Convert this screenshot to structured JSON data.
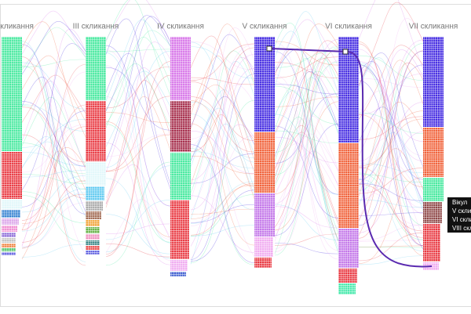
{
  "columns": [
    {
      "label": "II скликання",
      "segments": [
        {
          "color": "#3ee89a",
          "size": 146
        },
        {
          "color": "#e8313a",
          "size": 60
        },
        {
          "color": "#e0f7fa",
          "size": 12
        },
        {
          "color": "#2f7fd0",
          "size": 10
        },
        {
          "color": "#d9a0e8",
          "size": 8
        },
        {
          "color": "#f08ad0",
          "size": 8
        },
        {
          "color": "#8a6ad8",
          "size": 6
        },
        {
          "color": "#c0c0c0",
          "size": 6
        },
        {
          "color": "#f07f3a",
          "size": 5
        },
        {
          "color": "#48c060",
          "size": 4
        },
        {
          "color": "#6060e0",
          "size": 4
        }
      ]
    },
    {
      "label": "III скликання",
      "segments": [
        {
          "color": "#3ee89a",
          "size": 81
        },
        {
          "color": "#e8313a",
          "size": 77
        },
        {
          "color": "#e0f7fa",
          "size": 30
        },
        {
          "color": "#5bc8f0",
          "size": 18
        },
        {
          "color": "#a8a8a8",
          "size": 12
        },
        {
          "color": "#a06850",
          "size": 10
        },
        {
          "color": "#f0a030",
          "size": 8
        },
        {
          "color": "#60b040",
          "size": 8
        },
        {
          "color": "#f090c0",
          "size": 7
        },
        {
          "color": "#2f8080",
          "size": 6
        },
        {
          "color": "#e84040",
          "size": 5
        },
        {
          "color": "#6060e0",
          "size": 5
        }
      ]
    },
    {
      "label": "IV скликання",
      "segments": [
        {
          "color": "#d670e8",
          "size": 81
        },
        {
          "color": "#a02040",
          "size": 65
        },
        {
          "color": "#3ee89a",
          "size": 60
        },
        {
          "color": "#e8313a",
          "size": 75
        },
        {
          "color": "#f0a8f0",
          "size": 14
        },
        {
          "color": "#4060d0",
          "size": 6
        }
      ]
    },
    {
      "label": "V скликання",
      "segments": [
        {
          "color": "#3a20e0",
          "size": 121
        },
        {
          "color": "#f05a30",
          "size": 77
        },
        {
          "color": "#c070e8",
          "size": 55
        },
        {
          "color": "#f0a8f0",
          "size": 25
        },
        {
          "color": "#e8313a",
          "size": 13
        }
      ]
    },
    {
      "label": "VI скликання",
      "segments": [
        {
          "color": "#3a20e0",
          "size": 135
        },
        {
          "color": "#f05a30",
          "size": 108
        },
        {
          "color": "#c070e8",
          "size": 50
        },
        {
          "color": "#e8313a",
          "size": 18
        },
        {
          "color": "#3ee8a8",
          "size": 14
        }
      ]
    },
    {
      "label": "VII скликання",
      "segments": [
        {
          "color": "#3a20e0",
          "size": 115
        },
        {
          "color": "#f05a30",
          "size": 63
        },
        {
          "color": "#3ee89a",
          "size": 30
        },
        {
          "color": "#8a4040",
          "size": 27
        },
        {
          "color": "#e8313a",
          "size": 48
        },
        {
          "color": "#f0a8f0",
          "size": 10
        }
      ]
    }
  ],
  "tooltip": {
    "lines": [
      "Вікул",
      "V скли",
      "VI скли",
      "VIII скли"
    ]
  }
}
